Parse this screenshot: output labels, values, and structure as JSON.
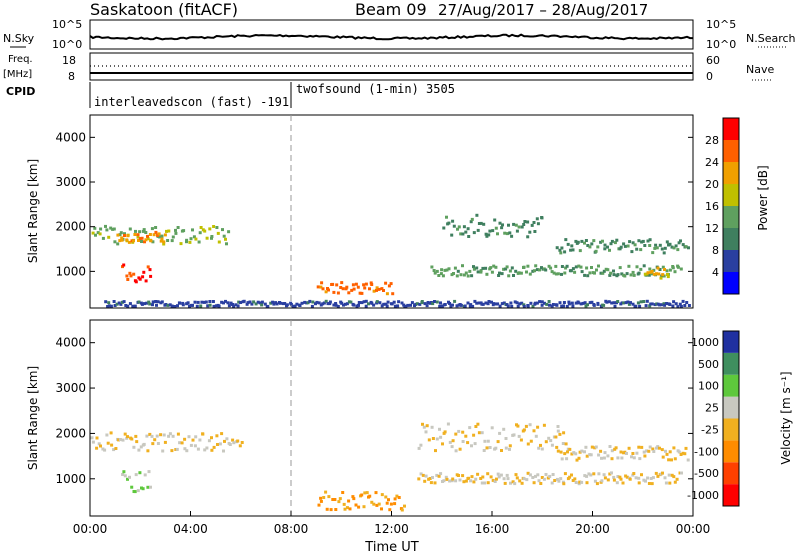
{
  "header": {
    "site": "Saskatoon (fitACF)",
    "beam": "Beam 09",
    "date_range": "27/Aug/2017 – 28/Aug/2017"
  },
  "noise_panel": {
    "left_label": "N.Sky",
    "left_ticks": [
      "10^5",
      "10^0"
    ],
    "right_label": "N.Search",
    "right_ticks": [
      "10^5",
      "10^0"
    ]
  },
  "freq_panel": {
    "left_label": "Freq.",
    "left_unit": "[MHz]",
    "left_ticks": [
      "18",
      "8"
    ],
    "right_label": "Nave",
    "right_ticks": [
      "60",
      "0"
    ]
  },
  "cpid_panel": {
    "label": "CPID",
    "modes": [
      {
        "start_hour": 0,
        "end_hour": 8,
        "name": "interleavedscon (fast) -191"
      },
      {
        "start_hour": 8,
        "end_hour": 24,
        "name": "twofsound (1-min) 3505"
      }
    ]
  },
  "x_axis": {
    "label": "Time UT",
    "ticks": [
      "00:00",
      "04:00",
      "08:00",
      "12:00",
      "16:00",
      "20:00",
      "00:00"
    ]
  },
  "colors": {
    "power_scale": [
      "#0000ff",
      "#2a3fa0",
      "#3f7f5f",
      "#5fa05f",
      "#c0c000",
      "#f0a000",
      "#ff6000",
      "#ff0000"
    ],
    "velocity_scale": [
      "#ff0000",
      "#ff4000",
      "#ff8c00",
      "#f0b020",
      "#c8c8c0",
      "#5ec83c",
      "#3f8f5f",
      "#2030a0"
    ]
  },
  "chart_data": [
    {
      "type": "heatmap",
      "panel": "power",
      "ylabel": "Slant Range [km]",
      "xlim": [
        0,
        24
      ],
      "ylim": [
        180,
        4500
      ],
      "yticks": [
        "1000",
        "2000",
        "3000",
        "4000"
      ],
      "colorbar": {
        "label": "Power [dB]",
        "ticks": [
          "4",
          "8",
          "12",
          "16",
          "20",
          "24",
          "28"
        ],
        "range": [
          0,
          30
        ]
      },
      "features": [
        {
          "name": "E-band (near range)",
          "t_start": 0.5,
          "t_end": 23.8,
          "r_center": 260,
          "r_width": 60,
          "value": 6
        },
        {
          "name": "morning 1800 km band",
          "t_start": 0.0,
          "t_end": 5.5,
          "r_center": 1800,
          "r_width": 200,
          "value": 14
        },
        {
          "name": "morning enhancement",
          "t_start": 1.0,
          "t_end": 3.0,
          "r_center": 1750,
          "r_width": 120,
          "value": 22
        },
        {
          "name": "near-range blob",
          "t_start": 1.2,
          "t_end": 2.4,
          "r_center": 950,
          "r_width": 200,
          "value": 26
        },
        {
          "name": "afternoon feature",
          "t_start": 9.0,
          "t_end": 12.0,
          "r_center": 600,
          "r_width": 150,
          "value": 24
        },
        {
          "name": "evening band 1",
          "t_start": 13.5,
          "t_end": 23.5,
          "r_center": 1000,
          "r_width": 120,
          "value": 12
        },
        {
          "name": "evening band 2",
          "t_start": 14.0,
          "t_end": 18.0,
          "r_center": 2000,
          "r_width": 250,
          "value": 10
        },
        {
          "name": "late evening 1500 km",
          "t_start": 18.5,
          "t_end": 23.8,
          "r_center": 1550,
          "r_width": 150,
          "value": 10
        },
        {
          "name": "late enhancement",
          "t_start": 22.0,
          "t_end": 23.0,
          "r_center": 950,
          "r_width": 120,
          "value": 20
        }
      ]
    },
    {
      "type": "heatmap",
      "panel": "velocity",
      "ylabel": "Slant Range [km]",
      "xlim": [
        0,
        24
      ],
      "ylim": [
        180,
        4500
      ],
      "yticks": [
        "1000",
        "2000",
        "3000",
        "4000"
      ],
      "colorbar": {
        "label": "Velocity [m s⁻¹]",
        "ticks": [
          "1000",
          "500",
          "100",
          "25",
          "-25",
          "-100",
          "-500",
          "-1000"
        ],
        "range": [
          -1000,
          1000
        ]
      },
      "features": [
        {
          "name": "morning ground-scatter",
          "t_start": 0.0,
          "t_end": 6.0,
          "r_center": 1800,
          "r_width": 200,
          "value": 0
        },
        {
          "name": "near-range positive",
          "t_start": 1.2,
          "t_end": 2.4,
          "r_center": 950,
          "r_width": 250,
          "value": 200
        },
        {
          "name": "afternoon negative",
          "t_start": 9.0,
          "t_end": 12.5,
          "r_center": 500,
          "r_width": 200,
          "value": -300
        },
        {
          "name": "evening ground-scatter 1",
          "t_start": 13.0,
          "t_end": 23.5,
          "r_center": 1000,
          "r_width": 120,
          "value": 0
        },
        {
          "name": "evening ground-scatter 2",
          "t_start": 13.0,
          "t_end": 19.0,
          "r_center": 1900,
          "r_width": 300,
          "value": 0
        },
        {
          "name": "late 1500 km scatter",
          "t_start": 18.5,
          "t_end": 23.8,
          "r_center": 1550,
          "r_width": 150,
          "value": 0
        }
      ]
    }
  ]
}
